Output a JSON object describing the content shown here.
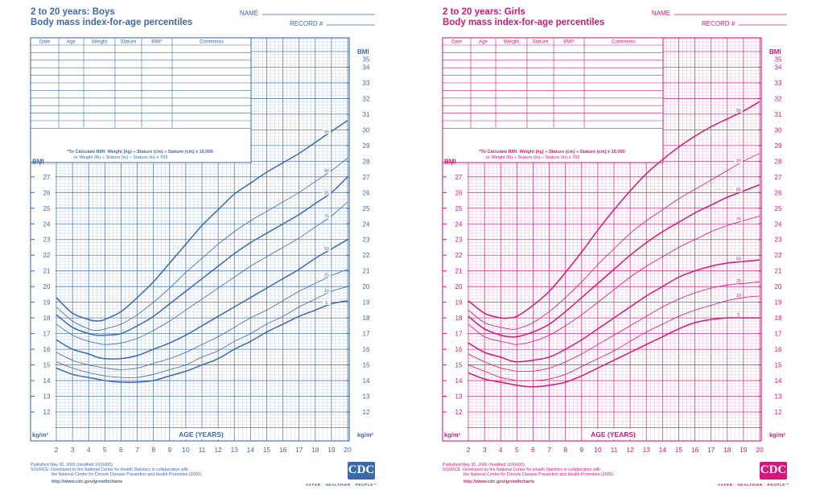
{
  "chart_data": [
    {
      "type": "line",
      "title": "2 to 20 years: Boys",
      "subtitle": "Body mass index-for-age percentiles",
      "name_label": "NAME",
      "record_label": "RECORD #",
      "table_headers": [
        "Date",
        "Age",
        "Weight",
        "Stature",
        "BMI*",
        "Comments"
      ],
      "formula_line1": "*To Calculate BMI: Weight (kg) ÷ Stature (cm) ÷ Stature (cm) x 10,000",
      "formula_line2": "or Weight (lb) ÷ Stature (in) ÷ Stature (in) x 703",
      "xlabel": "AGE (YEARS)",
      "ylabel": "BMI",
      "yunit": "kg/m²",
      "xlim": [
        2,
        20
      ],
      "ylim": [
        12,
        35
      ],
      "x_ticks": [
        2,
        3,
        4,
        5,
        6,
        7,
        8,
        9,
        10,
        11,
        12,
        13,
        14,
        15,
        16,
        17,
        18,
        19,
        20
      ],
      "y_ticks_left": [
        12,
        13,
        14,
        15,
        16,
        17,
        18,
        19,
        20,
        21,
        22,
        23,
        24,
        25,
        26,
        27
      ],
      "y_ticks_right": [
        12,
        13,
        14,
        15,
        16,
        17,
        18,
        19,
        20,
        21,
        22,
        23,
        24,
        25,
        26,
        27,
        28,
        29,
        30,
        31,
        32,
        33,
        34,
        35
      ],
      "x": [
        2,
        3,
        4,
        4.5,
        5,
        6,
        7,
        8,
        9,
        10,
        11,
        12,
        13,
        14,
        15,
        16,
        17,
        18,
        19,
        20
      ],
      "series": [
        {
          "name": "95",
          "values": [
            19.3,
            18.3,
            17.9,
            17.8,
            17.9,
            18.4,
            19.3,
            20.3,
            21.5,
            22.7,
            23.9,
            24.9,
            25.9,
            26.6,
            27.3,
            27.9,
            28.5,
            29.2,
            29.9,
            30.6
          ]
        },
        {
          "name": "90",
          "values": [
            18.7,
            17.8,
            17.3,
            17.2,
            17.3,
            17.6,
            18.2,
            19.0,
            19.9,
            20.9,
            21.8,
            22.7,
            23.5,
            24.2,
            24.8,
            25.4,
            26.0,
            26.7,
            27.4,
            28.2
          ]
        },
        {
          "name": "85",
          "values": [
            18.2,
            17.4,
            17.0,
            16.9,
            16.9,
            17.0,
            17.5,
            18.1,
            18.9,
            19.7,
            20.5,
            21.3,
            22.1,
            22.8,
            23.4,
            24.0,
            24.6,
            25.3,
            26.0,
            27.0
          ]
        },
        {
          "name": "75",
          "values": [
            17.6,
            16.9,
            16.5,
            16.4,
            16.3,
            16.4,
            16.7,
            17.2,
            17.8,
            18.5,
            19.2,
            19.9,
            20.6,
            21.3,
            21.9,
            22.5,
            23.1,
            23.8,
            24.5,
            25.4
          ]
        },
        {
          "name": "50",
          "values": [
            16.6,
            16.0,
            15.7,
            15.5,
            15.4,
            15.4,
            15.6,
            16.0,
            16.4,
            16.9,
            17.5,
            18.1,
            18.7,
            19.3,
            19.9,
            20.5,
            21.1,
            21.8,
            22.4,
            23.0
          ]
        },
        {
          "name": "25",
          "values": [
            15.8,
            15.3,
            15.0,
            14.9,
            14.8,
            14.7,
            14.8,
            15.1,
            15.4,
            15.8,
            16.3,
            16.8,
            17.4,
            18.0,
            18.5,
            19.1,
            19.7,
            20.2,
            20.7,
            21.1
          ]
        },
        {
          "name": "10",
          "values": [
            15.2,
            14.8,
            14.5,
            14.4,
            14.3,
            14.2,
            14.2,
            14.4,
            14.7,
            15.0,
            15.5,
            15.9,
            16.5,
            17.0,
            17.6,
            18.1,
            18.7,
            19.2,
            19.7,
            20.0
          ]
        },
        {
          "name": "5",
          "values": [
            14.8,
            14.4,
            14.2,
            14.1,
            14.0,
            13.9,
            13.9,
            14.0,
            14.3,
            14.6,
            15.0,
            15.4,
            16.0,
            16.5,
            17.1,
            17.6,
            18.1,
            18.5,
            18.9,
            19.1
          ]
        }
      ],
      "color": "#3c6aa8"
    },
    {
      "type": "line",
      "title": "2 to 20 years: Girls",
      "subtitle": "Body mass index-for-age percentiles",
      "name_label": "NAME",
      "record_label": "RECORD #",
      "table_headers": [
        "Date",
        "Age",
        "Weight",
        "Stature",
        "BMI*",
        "Comments"
      ],
      "formula_line1": "*To Calculate BMI: Weight (kg) ÷ Stature (cm) ÷ Stature (cm) x 10,000",
      "formula_line2": "or Weight (lb) ÷ Stature (in) ÷ Stature (in) x 703",
      "xlabel": "AGE (YEARS)",
      "ylabel": "BMI",
      "yunit": "kg/m²",
      "xlim": [
        2,
        20
      ],
      "ylim": [
        12,
        35
      ],
      "x_ticks": [
        2,
        3,
        4,
        5,
        6,
        7,
        8,
        9,
        10,
        11,
        12,
        13,
        14,
        15,
        16,
        17,
        18,
        19,
        20
      ],
      "y_ticks_left": [
        12,
        13,
        14,
        15,
        16,
        17,
        18,
        19,
        20,
        21,
        22,
        23,
        24,
        25,
        26,
        27
      ],
      "y_ticks_right": [
        12,
        13,
        14,
        15,
        16,
        17,
        18,
        19,
        20,
        21,
        22,
        23,
        24,
        25,
        26,
        27,
        28,
        29,
        30,
        31,
        32,
        33,
        34,
        35
      ],
      "x": [
        2,
        3,
        4,
        4.5,
        5,
        6,
        7,
        8,
        9,
        10,
        11,
        12,
        13,
        14,
        15,
        16,
        17,
        18,
        19,
        20
      ],
      "series": [
        {
          "name": "95",
          "values": [
            19.1,
            18.3,
            18.0,
            18.0,
            18.1,
            18.8,
            19.7,
            20.9,
            22.2,
            23.6,
            24.9,
            26.1,
            27.2,
            28.1,
            28.9,
            29.6,
            30.2,
            30.7,
            31.2,
            31.8
          ]
        },
        {
          "name": "90",
          "values": [
            18.5,
            17.7,
            17.4,
            17.3,
            17.3,
            17.7,
            18.4,
            19.3,
            20.3,
            21.4,
            22.4,
            23.4,
            24.2,
            24.9,
            25.6,
            26.2,
            26.8,
            27.4,
            28.0,
            28.5
          ]
        },
        {
          "name": "85",
          "values": [
            18.1,
            17.3,
            16.9,
            16.8,
            16.8,
            17.1,
            17.6,
            18.4,
            19.3,
            20.2,
            21.1,
            22.0,
            22.8,
            23.5,
            24.1,
            24.7,
            25.2,
            25.7,
            26.1,
            26.5
          ]
        },
        {
          "name": "75",
          "values": [
            17.6,
            16.8,
            16.5,
            16.4,
            16.3,
            16.5,
            16.9,
            17.5,
            18.2,
            19.0,
            19.8,
            20.6,
            21.3,
            21.9,
            22.5,
            23.0,
            23.5,
            23.9,
            24.2,
            24.5
          ]
        },
        {
          "name": "50",
          "values": [
            16.4,
            15.8,
            15.5,
            15.3,
            15.2,
            15.3,
            15.5,
            16.0,
            16.6,
            17.3,
            18.0,
            18.7,
            19.4,
            20.0,
            20.6,
            21.0,
            21.3,
            21.5,
            21.6,
            21.7
          ]
        },
        {
          "name": "25",
          "values": [
            15.7,
            15.2,
            14.8,
            14.7,
            14.6,
            14.6,
            14.8,
            15.2,
            15.7,
            16.3,
            16.9,
            17.5,
            18.1,
            18.7,
            19.2,
            19.6,
            19.9,
            20.1,
            20.2,
            20.3
          ]
        },
        {
          "name": "10",
          "values": [
            15.0,
            14.6,
            14.2,
            14.1,
            14.0,
            14.0,
            14.1,
            14.4,
            14.9,
            15.4,
            15.9,
            16.5,
            17.1,
            17.6,
            18.1,
            18.5,
            18.8,
            19.1,
            19.3,
            19.4
          ]
        },
        {
          "name": "5",
          "values": [
            14.5,
            14.1,
            13.9,
            13.8,
            13.7,
            13.6,
            13.7,
            13.9,
            14.3,
            14.8,
            15.3,
            15.8,
            16.3,
            16.8,
            17.3,
            17.7,
            17.9,
            18.0,
            18.0,
            18.0
          ]
        }
      ],
      "color": "#d4177b"
    }
  ],
  "footer": {
    "published": "Published May 30, 2000 (modified 10/16/00).",
    "source_line1": "SOURCE: Developed by the National Center for Health Statistics in collaboration with",
    "source_line2": "the National Center for Chronic Disease Prevention and Health Promotion (2000).",
    "url": "http://www.cdc.gov/growthcharts",
    "logo": "CDC",
    "tagline": "SAFER · HEALTHIER · PEOPLE™"
  }
}
